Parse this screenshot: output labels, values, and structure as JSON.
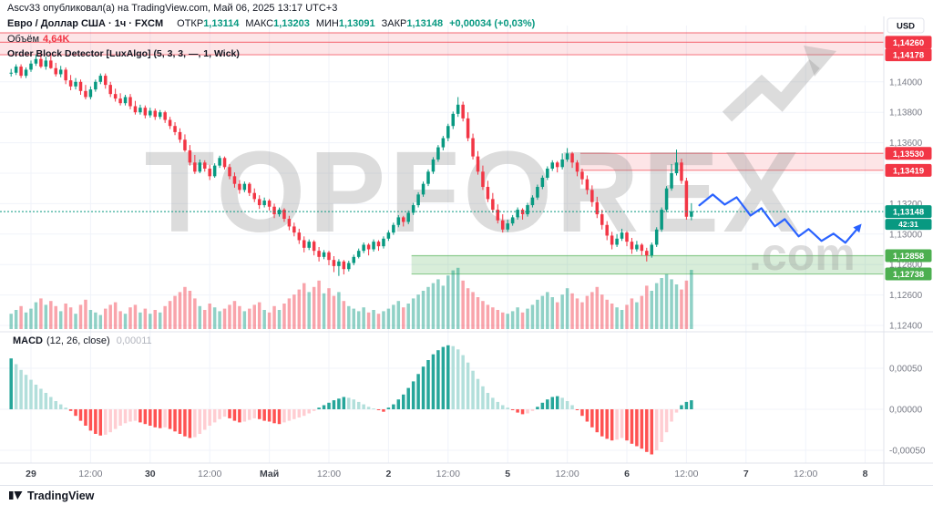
{
  "header": {
    "publish_line": "Ascv33 опубликовал(а) на TradingView.com, Май 06, 2025 13:17 UTC+3",
    "symbol_text": "Евро / Доллар США · 1ч · FXCM",
    "ohlc": [
      {
        "label": "ОТКР",
        "value": "1,13114"
      },
      {
        "label": "МАКС",
        "value": "1,13203"
      },
      {
        "label": "МИН",
        "value": "1,13091"
      },
      {
        "label": "ЗАКР",
        "value": "1,13148"
      }
    ],
    "change": "+0,00034 (+0,03%)",
    "volume_label": "Объём",
    "volume_value": "4,64K",
    "indicator": "Order Block Detector [LuxAlgo] (5, 3, 3, —, 1, Wick)"
  },
  "macd_legend": {
    "title": "MACD",
    "params": "(12, 26, close)",
    "value": "0,00011"
  },
  "watermark": {
    "text": "TOPFOREX",
    "suffix": ".com"
  },
  "footer": {
    "brand": "TradingView"
  },
  "chart_data": {
    "type": "candlestick",
    "title": "Евро / Доллар США 1ч FXCM",
    "currency": "USD",
    "interval": "1h",
    "price_encoding": {
      "note": "prices stored as (price - 1.1) * 100000",
      "offset": 1.1,
      "unit": 1e-05
    },
    "ylim": [
      1.1235,
      1.1437
    ],
    "grid": true,
    "time_axis": [
      [
        "29",
        4,
        1
      ],
      [
        "12:00",
        16,
        0
      ],
      [
        "30",
        28,
        1
      ],
      [
        "12:00",
        40,
        0
      ],
      [
        "Май",
        52,
        1
      ],
      [
        "12:00",
        64,
        0
      ],
      [
        "2",
        76,
        1
      ],
      [
        "12:00",
        88,
        0
      ],
      [
        "5",
        100,
        1
      ],
      [
        "12:00",
        112,
        0
      ],
      [
        "6",
        124,
        1
      ],
      [
        "12:00",
        136,
        0
      ],
      [
        "7",
        148,
        1
      ],
      [
        "12:00",
        160,
        0
      ],
      [
        "8",
        172,
        1
      ]
    ],
    "price_ticks": [
      [
        "1,14000",
        4000
      ],
      [
        "1,13800",
        3800
      ],
      [
        "1,13600",
        3600
      ],
      [
        "1,13400",
        3400
      ],
      [
        "1,13200",
        3200
      ],
      [
        "1,13000",
        3000
      ],
      [
        "1,12800",
        2800
      ],
      [
        "1,12600",
        2600
      ],
      [
        "1,12400",
        2400
      ]
    ],
    "macd_ticks": [
      [
        "0,00050",
        50
      ],
      [
        "0,00000",
        0
      ],
      [
        "-0,00050",
        -50
      ]
    ],
    "zones": [
      {
        "kind": "supply",
        "top": 4322,
        "bottom": 4178,
        "inner_line": 4260,
        "start_i": null,
        "labels": [
          [
            "1,14260",
            4260
          ],
          [
            "1,14178",
            4178
          ]
        ]
      },
      {
        "kind": "supply",
        "top": 3530,
        "bottom": 3419,
        "start_i": 115,
        "labels": [
          [
            "1,13530",
            3530
          ],
          [
            "1,13419",
            3419
          ]
        ]
      },
      {
        "kind": "demand",
        "top": 2858,
        "bottom": 2738,
        "start_i": 81,
        "labels": [
          [
            "1,12858",
            2858
          ],
          [
            "1,12738",
            2738
          ]
        ]
      }
    ],
    "last_price": {
      "v": 3148,
      "label": "1,13148",
      "countdown": "42:31"
    },
    "projection": [
      [
        138.6,
        3189
      ],
      [
        141.3,
        3260
      ],
      [
        143.7,
        3194
      ],
      [
        146.1,
        3242
      ],
      [
        148.9,
        3122
      ],
      [
        151.1,
        3170
      ],
      [
        153.8,
        3051
      ],
      [
        155.8,
        3098
      ],
      [
        158.6,
        2985
      ],
      [
        160.6,
        3033
      ],
      [
        163.2,
        2955
      ],
      [
        165.6,
        3003
      ],
      [
        168,
        2943
      ],
      [
        170.2,
        3027
      ]
    ],
    "candles": [
      [
        4055,
        4085,
        4035,
        4060
      ],
      [
        4060,
        4115,
        4045,
        4100
      ],
      [
        4100,
        4115,
        4025,
        4040
      ],
      [
        4040,
        4095,
        4025,
        4080
      ],
      [
        4080,
        4140,
        4065,
        4120
      ],
      [
        4120,
        4180,
        4105,
        4150
      ],
      [
        4150,
        4195,
        4090,
        4100
      ],
      [
        4100,
        4165,
        4080,
        4140
      ],
      [
        4140,
        4190,
        4085,
        4090
      ],
      [
        4090,
        4125,
        4035,
        4050
      ],
      [
        4050,
        4105,
        4030,
        4080
      ],
      [
        4080,
        4095,
        3985,
        4010
      ],
      [
        4010,
        4045,
        3945,
        3970
      ],
      [
        3970,
        4025,
        3950,
        4000
      ],
      [
        4000,
        4015,
        3915,
        3940
      ],
      [
        3940,
        3980,
        3885,
        3900
      ],
      [
        3900,
        3970,
        3885,
        3950
      ],
      [
        3950,
        4015,
        3935,
        4000
      ],
      [
        4000,
        4055,
        3985,
        4040
      ],
      [
        4040,
        4055,
        3955,
        3980
      ],
      [
        3980,
        4000,
        3900,
        3920
      ],
      [
        3920,
        3955,
        3870,
        3890
      ],
      [
        3890,
        3925,
        3845,
        3860
      ],
      [
        3860,
        3915,
        3845,
        3900
      ],
      [
        3900,
        3920,
        3820,
        3840
      ],
      [
        3840,
        3875,
        3785,
        3800
      ],
      [
        3800,
        3850,
        3785,
        3830
      ],
      [
        3830,
        3845,
        3760,
        3780
      ],
      [
        3780,
        3830,
        3765,
        3810
      ],
      [
        3810,
        3825,
        3750,
        3770
      ],
      [
        3770,
        3815,
        3755,
        3800
      ],
      [
        3800,
        3810,
        3730,
        3750
      ],
      [
        3750,
        3770,
        3690,
        3710
      ],
      [
        3710,
        3735,
        3650,
        3670
      ],
      [
        3670,
        3695,
        3600,
        3620
      ],
      [
        3620,
        3655,
        3540,
        3550
      ],
      [
        3550,
        3585,
        3450,
        3470
      ],
      [
        3470,
        3520,
        3395,
        3410
      ],
      [
        3410,
        3490,
        3400,
        3470
      ],
      [
        3470,
        3485,
        3410,
        3430
      ],
      [
        3430,
        3455,
        3355,
        3380
      ],
      [
        3380,
        3465,
        3370,
        3450
      ],
      [
        3450,
        3515,
        3435,
        3500
      ],
      [
        3500,
        3510,
        3425,
        3440
      ],
      [
        3440,
        3460,
        3360,
        3380
      ],
      [
        3380,
        3405,
        3305,
        3330
      ],
      [
        3330,
        3355,
        3265,
        3290
      ],
      [
        3290,
        3345,
        3275,
        3330
      ],
      [
        3330,
        3340,
        3250,
        3270
      ],
      [
        3270,
        3300,
        3210,
        3230
      ],
      [
        3230,
        3255,
        3165,
        3190
      ],
      [
        3190,
        3240,
        3175,
        3220
      ],
      [
        3220,
        3230,
        3155,
        3180
      ],
      [
        3180,
        3200,
        3105,
        3130
      ],
      [
        3130,
        3175,
        3115,
        3160
      ],
      [
        3160,
        3170,
        3080,
        3100
      ],
      [
        3100,
        3120,
        3025,
        3050
      ],
      [
        3050,
        3075,
        2985,
        3010
      ],
      [
        3010,
        3035,
        2935,
        2960
      ],
      [
        2960,
        2985,
        2880,
        2910
      ],
      [
        2910,
        2965,
        2895,
        2950
      ],
      [
        2950,
        2960,
        2860,
        2890
      ],
      [
        2890,
        2915,
        2820,
        2850
      ],
      [
        2850,
        2895,
        2835,
        2880
      ],
      [
        2880,
        2890,
        2795,
        2830
      ],
      [
        2830,
        2855,
        2750,
        2790
      ],
      [
        2790,
        2835,
        2725,
        2820
      ],
      [
        2820,
        2830,
        2735,
        2770
      ],
      [
        2770,
        2825,
        2755,
        2810
      ],
      [
        2810,
        2865,
        2795,
        2850
      ],
      [
        2850,
        2905,
        2840,
        2890
      ],
      [
        2890,
        2945,
        2875,
        2930
      ],
      [
        2930,
        2940,
        2860,
        2900
      ],
      [
        2900,
        2965,
        2885,
        2950
      ],
      [
        2950,
        2960,
        2890,
        2920
      ],
      [
        2920,
        2985,
        2905,
        2970
      ],
      [
        2970,
        3025,
        2955,
        3010
      ],
      [
        3010,
        3075,
        2995,
        3060
      ],
      [
        3060,
        3125,
        3045,
        3110
      ],
      [
        3110,
        3120,
        3050,
        3080
      ],
      [
        3080,
        3155,
        3065,
        3140
      ],
      [
        3140,
        3205,
        3125,
        3190
      ],
      [
        3190,
        3275,
        3175,
        3260
      ],
      [
        3260,
        3345,
        3245,
        3330
      ],
      [
        3330,
        3425,
        3315,
        3410
      ],
      [
        3410,
        3505,
        3395,
        3490
      ],
      [
        3490,
        3585,
        3475,
        3570
      ],
      [
        3570,
        3645,
        3550,
        3630
      ],
      [
        3630,
        3725,
        3610,
        3710
      ],
      [
        3710,
        3805,
        3690,
        3790
      ],
      [
        3790,
        3900,
        3770,
        3850
      ],
      [
        3850,
        3870,
        3740,
        3760
      ],
      [
        3760,
        3800,
        3610,
        3630
      ],
      [
        3630,
        3660,
        3490,
        3510
      ],
      [
        3510,
        3545,
        3390,
        3410
      ],
      [
        3410,
        3450,
        3290,
        3310
      ],
      [
        3310,
        3350,
        3210,
        3230
      ],
      [
        3230,
        3270,
        3140,
        3160
      ],
      [
        3160,
        3195,
        3070,
        3090
      ],
      [
        3090,
        3130,
        3010,
        3030
      ],
      [
        3030,
        3095,
        3015,
        3070
      ],
      [
        3070,
        3125,
        3055,
        3110
      ],
      [
        3110,
        3175,
        3095,
        3160
      ],
      [
        3160,
        3170,
        3095,
        3130
      ],
      [
        3130,
        3205,
        3115,
        3190
      ],
      [
        3190,
        3255,
        3175,
        3240
      ],
      [
        3240,
        3325,
        3225,
        3310
      ],
      [
        3310,
        3385,
        3295,
        3370
      ],
      [
        3370,
        3445,
        3355,
        3430
      ],
      [
        3430,
        3485,
        3415,
        3470
      ],
      [
        3470,
        3480,
        3405,
        3440
      ],
      [
        3440,
        3530,
        3425,
        3490
      ],
      [
        3490,
        3565,
        3475,
        3530
      ],
      [
        3530,
        3540,
        3435,
        3470
      ],
      [
        3470,
        3485,
        3380,
        3410
      ],
      [
        3410,
        3430,
        3325,
        3360
      ],
      [
        3360,
        3385,
        3260,
        3290
      ],
      [
        3290,
        3320,
        3180,
        3210
      ],
      [
        3210,
        3245,
        3105,
        3130
      ],
      [
        3130,
        3160,
        3030,
        3060
      ],
      [
        3060,
        3085,
        2960,
        2990
      ],
      [
        2990,
        3015,
        2900,
        2930
      ],
      [
        2930,
        3000,
        2915,
        2970
      ],
      [
        2970,
        3035,
        2955,
        3010
      ],
      [
        3010,
        3020,
        2920,
        2950
      ],
      [
        2950,
        2975,
        2870,
        2900
      ],
      [
        2900,
        2955,
        2885,
        2930
      ],
      [
        2930,
        2940,
        2860,
        2890
      ],
      [
        2890,
        2910,
        2820,
        2860
      ],
      [
        2860,
        2945,
        2845,
        2930
      ],
      [
        2930,
        3045,
        2915,
        3030
      ],
      [
        3030,
        3175,
        3015,
        3160
      ],
      [
        3160,
        3315,
        3145,
        3300
      ],
      [
        3300,
        3460,
        3285,
        3400
      ],
      [
        3400,
        3555,
        3385,
        3470
      ],
      [
        3470,
        3495,
        3330,
        3350
      ],
      [
        3350,
        3370,
        3095,
        3114
      ],
      [
        3114,
        3203,
        3091,
        3148
      ]
    ],
    "volume": [
      1.2,
      1.5,
      1.8,
      1.3,
      1.6,
      2.1,
      2.4,
      1.9,
      2.2,
      1.8,
      1.4,
      2.0,
      1.7,
      1.2,
      1.9,
      2.3,
      1.5,
      1.3,
      1.1,
      1.6,
      1.9,
      2.1,
      1.4,
      1.2,
      1.7,
      1.9,
      1.3,
      1.6,
      1.2,
      1.5,
      1.3,
      1.8,
      2.2,
      2.6,
      2.9,
      3.3,
      3.0,
      2.4,
      1.8,
      1.5,
      2.0,
      1.7,
      1.4,
      1.6,
      1.9,
      2.2,
      1.8,
      1.4,
      1.6,
      1.9,
      2.1,
      1.5,
      1.3,
      1.8,
      1.5,
      2.0,
      2.4,
      2.7,
      3.1,
      3.6,
      2.9,
      3.3,
      3.8,
      2.8,
      3.2,
      2.6,
      2.9,
      2.2,
      1.8,
      1.6,
      1.4,
      1.7,
      1.3,
      1.5,
      1.2,
      1.4,
      1.6,
      1.9,
      2.2,
      1.7,
      2.0,
      2.4,
      2.7,
      3.0,
      3.3,
      3.6,
      3.9,
      3.4,
      4.2,
      4.6,
      4.8,
      3.8,
      3.2,
      2.9,
      2.5,
      2.2,
      1.9,
      1.7,
      1.5,
      1.3,
      1.2,
      1.4,
      1.7,
      1.3,
      1.6,
      1.9,
      2.3,
      2.6,
      2.9,
      2.5,
      2.1,
      2.7,
      3.2,
      2.8,
      2.4,
      2.1,
      2.6,
      2.9,
      3.3,
      2.7,
      2.3,
      2.0,
      1.7,
      1.5,
      1.9,
      2.4,
      2.1,
      2.6,
      3.4,
      3.0,
      3.6,
      4.0,
      4.3,
      3.9,
      3.5,
      3.1,
      3.8,
      4.64
    ],
    "macd_hist": [
      62,
      55,
      48,
      42,
      36,
      30,
      25,
      20,
      15,
      10,
      6,
      2,
      -2,
      -8,
      -14,
      -20,
      -26,
      -30,
      -32,
      -31,
      -28,
      -24,
      -20,
      -17,
      -15,
      -14,
      -16,
      -18,
      -20,
      -22,
      -23,
      -22,
      -24,
      -27,
      -30,
      -33,
      -35,
      -34,
      -30,
      -25,
      -20,
      -16,
      -12,
      -9,
      -11,
      -14,
      -16,
      -15,
      -13,
      -11,
      -12,
      -14,
      -15,
      -17,
      -18,
      -16,
      -14,
      -12,
      -10,
      -8,
      -5,
      -2,
      2,
      5,
      8,
      11,
      13,
      15,
      14,
      12,
      9,
      6,
      3,
      1,
      -1,
      -3,
      2,
      6,
      12,
      18,
      26,
      34,
      43,
      52,
      60,
      67,
      72,
      76,
      78,
      77,
      73,
      66,
      57,
      47,
      37,
      28,
      20,
      14,
      9,
      5,
      2,
      -1,
      -4,
      -6,
      -5,
      -2,
      3,
      8,
      12,
      15,
      16,
      14,
      10,
      5,
      -1,
      -8,
      -15,
      -22,
      -28,
      -33,
      -36,
      -38,
      -37,
      -35,
      -38,
      -42,
      -45,
      -48,
      -52,
      -55,
      -50,
      -40,
      -28,
      -15,
      -4,
      5,
      9,
      11
    ],
    "colors": {
      "up": "#089981",
      "down": "#f23645",
      "vol_up": "rgba(8,153,129,0.45)",
      "vol_down": "rgba(242,54,69,0.45)",
      "supply_fill": "rgba(242,54,69,0.13)",
      "supply_line": "#f23645",
      "demand_fill": "rgba(76,175,80,0.22)",
      "demand_line": "#4caf50",
      "macd_grow_above": "#26a69a",
      "macd_fall_above": "#b2dfdb",
      "macd_fall_below": "#ff5252",
      "macd_grow_below": "#ffcdd2",
      "current": "#089981",
      "projection": "#2962ff",
      "axis_text": "#787b86",
      "grid": "#f0f3fa",
      "separator": "#e0e3eb",
      "watermark": "rgba(140,140,140,0.30)"
    }
  }
}
